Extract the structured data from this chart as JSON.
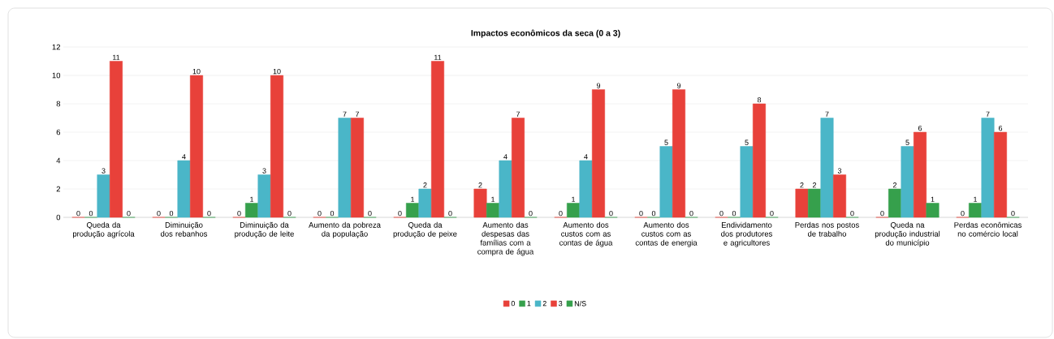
{
  "chart_data": {
    "type": "bar",
    "title": "Impactos econômicos da seca (0 a 3)",
    "categories": [
      "Queda da produção agrícola",
      "Diminuição dos rebanhos",
      "Diminuição da produção de leite",
      "Aumento da pobreza da população",
      "Queda da produção de peixe",
      "Aumento das despesas das famílias com a compra de água",
      "Aumento dos custos com as contas de água",
      "Aumento dos custos com as contas de energia",
      "Endividamento dos produtores e agricultores",
      "Perdas nos postos de trabalho",
      "Queda na produção industrial do município",
      "Perdas econômicas no comércio local"
    ],
    "series": [
      {
        "name": "0",
        "color": "#e8413a",
        "values": [
          0,
          0,
          0,
          0,
          0,
          2,
          0,
          0,
          0,
          2,
          0,
          0
        ]
      },
      {
        "name": "1",
        "color": "#36a04c",
        "values": [
          0,
          0,
          1,
          0,
          1,
          1,
          1,
          0,
          0,
          2,
          2,
          1
        ]
      },
      {
        "name": "2",
        "color": "#4ab6c8",
        "values": [
          3,
          4,
          3,
          7,
          2,
          4,
          4,
          5,
          5,
          7,
          5,
          7
        ]
      },
      {
        "name": "3",
        "color": "#e8413a",
        "values": [
          11,
          10,
          10,
          7,
          11,
          7,
          9,
          9,
          8,
          3,
          6,
          6
        ]
      },
      {
        "name": "N/S",
        "color": "#36a04c",
        "values": [
          0,
          0,
          0,
          0,
          0,
          0,
          0,
          0,
          0,
          0,
          1,
          0
        ]
      }
    ],
    "ylim": [
      0,
      12
    ],
    "yticks": [
      0,
      2,
      4,
      6,
      8,
      10,
      12
    ],
    "grid": "y",
    "legend": "bottom",
    "data_labels": true
  }
}
